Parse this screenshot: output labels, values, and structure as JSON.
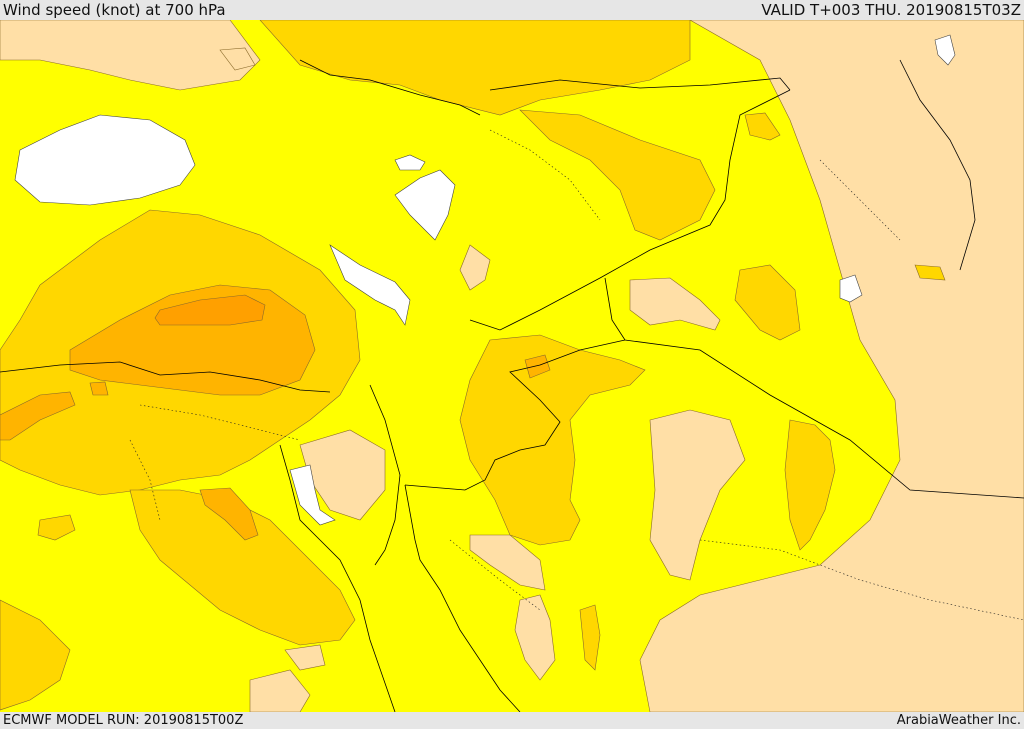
{
  "header": {
    "title": "Wind speed (knot) at 700 hPa",
    "valid_time": "VALID T+003 THU. 20190815T03Z"
  },
  "footer": {
    "model_run": "ECMWF MODEL RUN: 20190815T00Z",
    "credit": "ArabiaWeather Inc."
  },
  "palette": {
    "base": "#ffff00",
    "light": "#ffdfa6",
    "medium": "#ffd700",
    "strong": "#ffb400",
    "strongest": "#ffa000",
    "calm": "#ffffff",
    "borders": "#000000"
  }
}
